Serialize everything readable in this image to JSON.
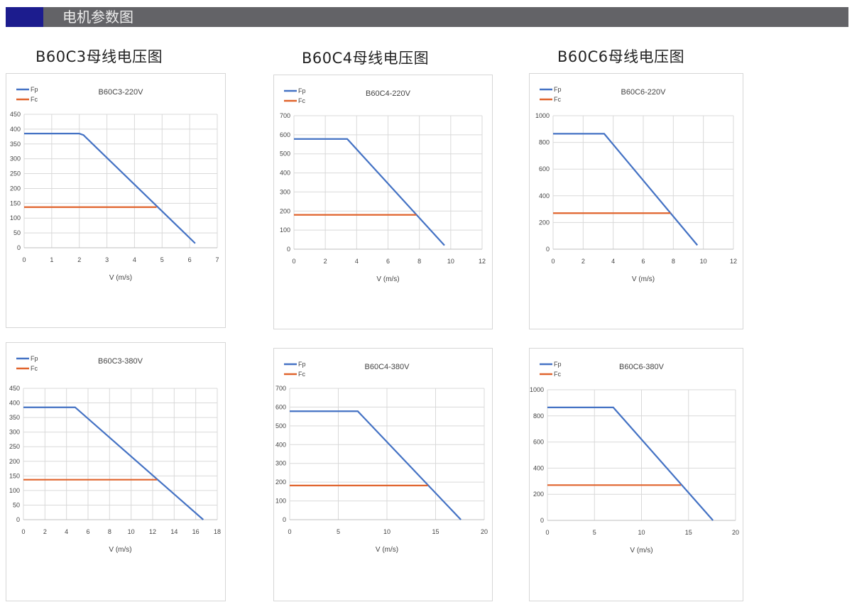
{
  "header": {
    "title": "电机参数图"
  },
  "sections": [
    {
      "title": "B60C3母线电压图"
    },
    {
      "title": "B60C4母线电压图"
    },
    {
      "title": "B60C6母线电压图"
    }
  ],
  "colors": {
    "Fp": "#4472c4",
    "Fc": "#e0632c",
    "header_bg": "#636367",
    "header_accent": "#1c1c8e"
  },
  "chart_data": [
    {
      "type": "line",
      "title": "B60C3-220V",
      "xlabel": "V (m/s)",
      "ylabel": "",
      "xlim": [
        0,
        7
      ],
      "ylim": [
        0,
        450
      ],
      "xticks": [
        0,
        1,
        2,
        3,
        4,
        5,
        6,
        7
      ],
      "yticks": [
        0,
        50,
        100,
        150,
        200,
        250,
        300,
        350,
        400,
        450
      ],
      "grid": true,
      "legend": "top-left",
      "series": [
        {
          "name": "Fp",
          "x": [
            0,
            2,
            2.15,
            6.2
          ],
          "y": [
            385,
            385,
            380,
            15
          ]
        },
        {
          "name": "Fc",
          "x": [
            0,
            4.8
          ],
          "y": [
            137,
            137
          ]
        }
      ]
    },
    {
      "type": "line",
      "title": "B60C4-220V",
      "xlabel": "V (m/s)",
      "ylabel": "",
      "xlim": [
        0,
        12
      ],
      "ylim": [
        0,
        700
      ],
      "xticks": [
        0,
        2,
        4,
        6,
        8,
        10,
        12
      ],
      "yticks": [
        0,
        100,
        200,
        300,
        400,
        500,
        600,
        700
      ],
      "grid": true,
      "legend": "top-left",
      "series": [
        {
          "name": "Fp",
          "x": [
            0,
            3.4,
            9.6
          ],
          "y": [
            578,
            578,
            20
          ]
        },
        {
          "name": "Fc",
          "x": [
            0,
            7.8
          ],
          "y": [
            180,
            180
          ]
        }
      ]
    },
    {
      "type": "line",
      "title": "B60C6-220V",
      "xlabel": "V (m/s)",
      "ylabel": "",
      "xlim": [
        0,
        12
      ],
      "ylim": [
        0,
        1000
      ],
      "xticks": [
        0,
        2,
        4,
        6,
        8,
        10,
        12
      ],
      "yticks": [
        0,
        200,
        400,
        600,
        800,
        1000
      ],
      "grid": true,
      "legend": "top-left",
      "series": [
        {
          "name": "Fp",
          "x": [
            0,
            3.4,
            9.6
          ],
          "y": [
            865,
            865,
            30
          ]
        },
        {
          "name": "Fc",
          "x": [
            0,
            7.8
          ],
          "y": [
            270,
            270
          ]
        }
      ]
    },
    {
      "type": "line",
      "title": "B60C3-380V",
      "xlabel": "V (m/s)",
      "ylabel": "",
      "xlim": [
        0,
        18
      ],
      "ylim": [
        0,
        450
      ],
      "xticks": [
        0,
        2,
        4,
        6,
        8,
        10,
        12,
        14,
        16,
        18
      ],
      "yticks": [
        0,
        50,
        100,
        150,
        200,
        250,
        300,
        350,
        400,
        450
      ],
      "grid": true,
      "legend": "top-left",
      "series": [
        {
          "name": "Fp",
          "x": [
            0,
            4.8,
            16.7
          ],
          "y": [
            385,
            385,
            0
          ]
        },
        {
          "name": "Fc",
          "x": [
            0,
            12.4
          ],
          "y": [
            137,
            137
          ]
        }
      ]
    },
    {
      "type": "line",
      "title": "B60C4-380V",
      "xlabel": "V (m/s)",
      "ylabel": "",
      "xlim": [
        0,
        20
      ],
      "ylim": [
        0,
        700
      ],
      "xticks": [
        0,
        5,
        10,
        15,
        20
      ],
      "yticks": [
        0,
        100,
        200,
        300,
        400,
        500,
        600,
        700
      ],
      "grid": true,
      "legend": "top-left",
      "series": [
        {
          "name": "Fp",
          "x": [
            0,
            7,
            17.6
          ],
          "y": [
            578,
            578,
            0
          ]
        },
        {
          "name": "Fc",
          "x": [
            0,
            14.2
          ],
          "y": [
            182,
            182
          ]
        }
      ]
    },
    {
      "type": "line",
      "title": "B60C6-380V",
      "xlabel": "V (m/s)",
      "ylabel": "",
      "xlim": [
        0,
        20
      ],
      "ylim": [
        0,
        1000
      ],
      "xticks": [
        0,
        5,
        10,
        15,
        20
      ],
      "yticks": [
        0,
        200,
        400,
        600,
        800,
        1000
      ],
      "grid": true,
      "legend": "top-left",
      "series": [
        {
          "name": "Fp",
          "x": [
            0,
            7,
            17.6
          ],
          "y": [
            865,
            865,
            0
          ]
        },
        {
          "name": "Fc",
          "x": [
            0,
            14.2
          ],
          "y": [
            270,
            270
          ]
        }
      ]
    }
  ]
}
